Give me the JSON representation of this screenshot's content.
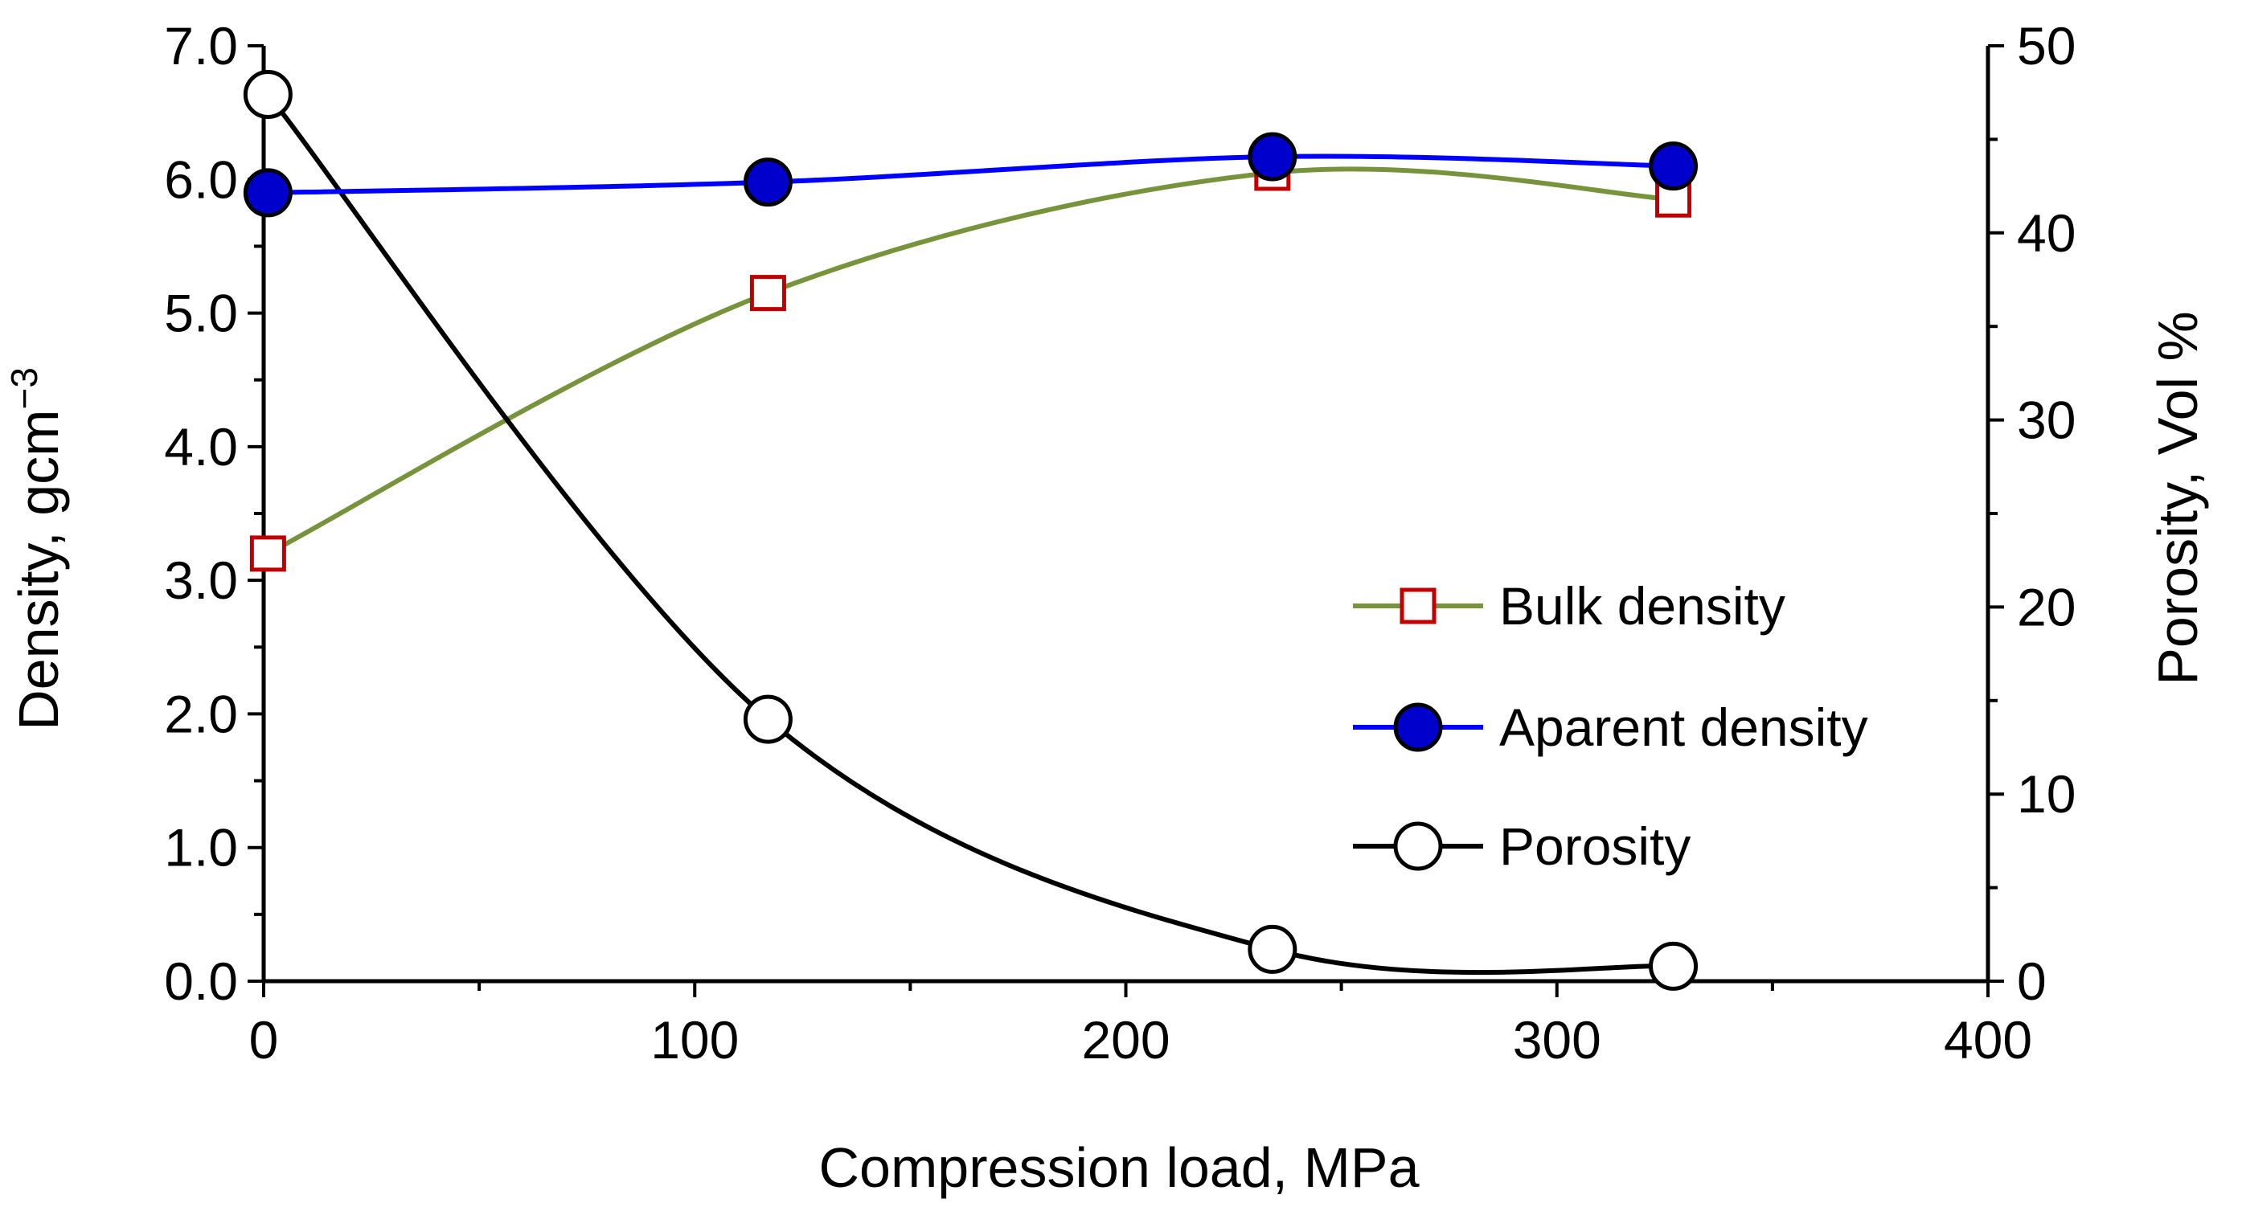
{
  "chart_data": {
    "type": "line",
    "x_axis": {
      "label": "Compression load, MPa",
      "range": [
        0,
        400
      ],
      "ticks": [
        0,
        100,
        200,
        300,
        400
      ],
      "tick_labels": [
        "0",
        "100",
        "200",
        "300",
        "400"
      ],
      "minor_step": 50
    },
    "y_left": {
      "label": "Density, gcm",
      "label_superscript": "−3",
      "range": [
        0,
        7
      ],
      "ticks": [
        0,
        1,
        2,
        3,
        4,
        5,
        6,
        7
      ],
      "tick_labels": [
        "0.0",
        "1.0",
        "2.0",
        "3.0",
        "4.0",
        "5.0",
        "6.0",
        "7.0"
      ],
      "minor_step": 0.5
    },
    "y_right": {
      "label": "Porosity, Vol %",
      "range": [
        0,
        50
      ],
      "ticks": [
        0,
        10,
        20,
        30,
        40,
        50
      ],
      "tick_labels": [
        "0",
        "10",
        "20",
        "30",
        "40",
        "50"
      ],
      "minor_step": 5
    },
    "series": [
      {
        "name": "Bulk density",
        "axis": "left",
        "x": [
          1,
          117,
          234,
          327
        ],
        "y": [
          3.2,
          5.15,
          6.05,
          5.85
        ],
        "line_color": "#77933c",
        "marker": "square",
        "marker_stroke": "#c00000",
        "marker_fill": "#ffffff"
      },
      {
        "name": "Aparent density",
        "axis": "left",
        "x": [
          1,
          117,
          234,
          327
        ],
        "y": [
          5.9,
          5.98,
          6.17,
          6.1
        ],
        "line_color": "#0000ff",
        "marker": "circle",
        "marker_stroke": "#000000",
        "marker_fill": "#0000cc"
      },
      {
        "name": "Porosity",
        "axis": "right",
        "x": [
          1,
          117,
          234,
          327
        ],
        "y": [
          47.4,
          14.0,
          1.7,
          0.8
        ],
        "line_color": "#000000",
        "marker": "circle",
        "marker_stroke": "#000000",
        "marker_fill": "#ffffff"
      }
    ],
    "legend": {
      "position": "center-right",
      "entries": [
        "Bulk density",
        "Aparent density",
        "Porosity"
      ]
    },
    "grid": false,
    "title": ""
  }
}
